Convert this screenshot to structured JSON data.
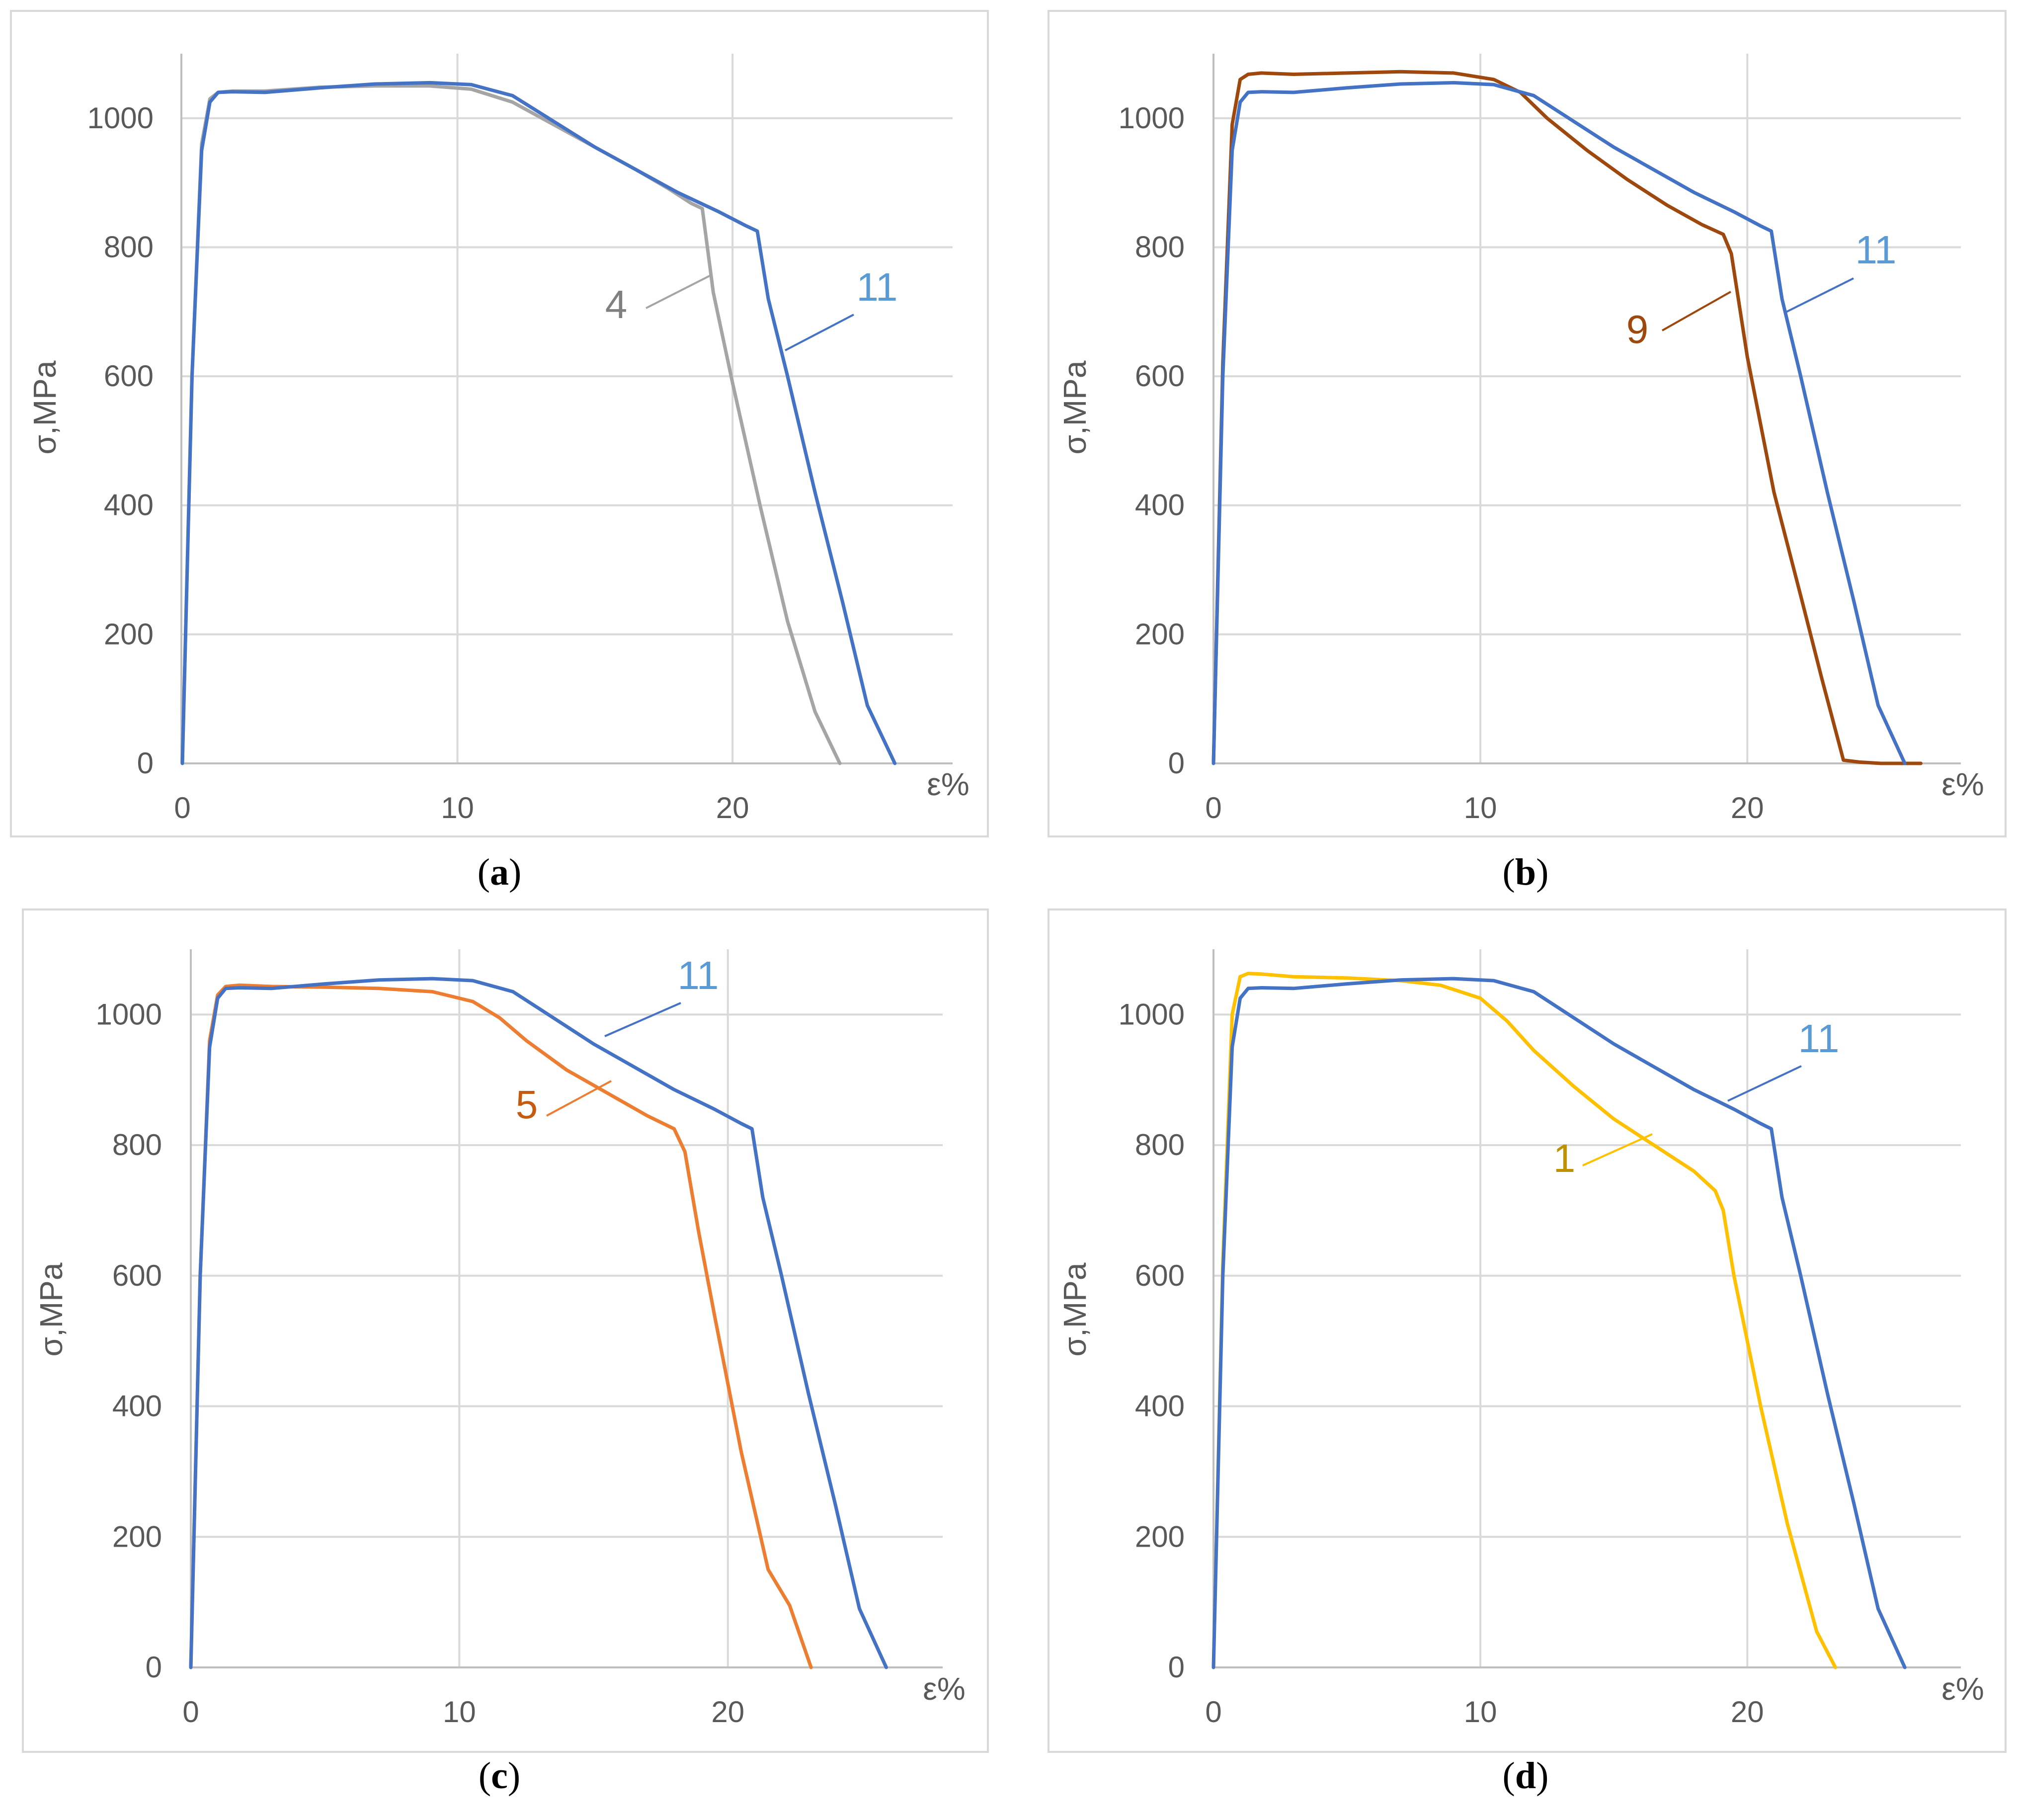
{
  "colors": {
    "frame": "#d9d9d9",
    "grid": "#d9d9d9",
    "axis": "#bfbfbf",
    "text": "#595959"
  },
  "chart_data": [
    {
      "id": "a",
      "type": "line",
      "caption": "a",
      "xlabel": "ε%",
      "ylabel": "σ,MPa",
      "xlim": [
        0,
        28
      ],
      "ylim": [
        0,
        1100
      ],
      "xticks": [
        "0",
        "10",
        "20"
      ],
      "yticks": [
        "0",
        "200",
        "400",
        "600",
        "800",
        "1000"
      ],
      "grid": true,
      "series": [
        {
          "name": "4",
          "color": "#a5a5a5",
          "x": [
            0,
            0.35,
            0.7,
            1.0,
            1.3,
            1.8,
            3,
            5,
            7,
            9,
            10.5,
            12,
            13.5,
            15,
            16.5,
            17.7,
            18.5,
            18.9,
            19.3,
            20,
            21,
            22,
            23,
            23.9
          ],
          "y": [
            0,
            600,
            960,
            1030,
            1040,
            1042,
            1042,
            1048,
            1050,
            1050,
            1045,
            1025,
            990,
            955,
            920,
            890,
            868,
            860,
            730,
            590,
            400,
            220,
            80,
            0
          ]
        },
        {
          "name": "11",
          "color": "#4472c4",
          "x": [
            0,
            0.35,
            0.7,
            1.0,
            1.3,
            1.8,
            3,
            5,
            7,
            9,
            10.5,
            12,
            13.5,
            15,
            16.5,
            18,
            19.5,
            20.5,
            20.9,
            21.3,
            22,
            23,
            24,
            24.9,
            25.9
          ],
          "y": [
            0,
            600,
            950,
            1025,
            1040,
            1041,
            1040,
            1047,
            1053,
            1055,
            1052,
            1035,
            995,
            955,
            920,
            885,
            855,
            833,
            825,
            720,
            600,
            420,
            250,
            90,
            0
          ]
        }
      ],
      "annotations": [
        {
          "text": "4",
          "series": "4",
          "color": "#808080"
        },
        {
          "text": "11",
          "series": "11",
          "color": "#5b9bd5"
        }
      ]
    },
    {
      "id": "b",
      "type": "line",
      "caption": "b",
      "xlabel": "ε%",
      "ylabel": "σ,MPa",
      "xlim": [
        0,
        28
      ],
      "ylim": [
        0,
        1100
      ],
      "xticks": [
        "0",
        "10",
        "20"
      ],
      "yticks": [
        "0",
        "200",
        "400",
        "600",
        "800",
        "1000"
      ],
      "grid": true,
      "series": [
        {
          "name": "9",
          "color": "#9e480e",
          "x": [
            0,
            0.35,
            0.7,
            1.0,
            1.3,
            1.8,
            3,
            5,
            7,
            9,
            10.5,
            11.5,
            12.5,
            14,
            15.5,
            17,
            18.3,
            19.1,
            19.4,
            20,
            21,
            22,
            22.8,
            23.6,
            24.2,
            25,
            26.5
          ],
          "y": [
            0,
            620,
            990,
            1060,
            1068,
            1070,
            1068,
            1070,
            1072,
            1070,
            1060,
            1040,
            1000,
            950,
            905,
            865,
            835,
            820,
            790,
            630,
            420,
            260,
            130,
            5,
            2,
            0,
            0
          ]
        },
        {
          "name": "11",
          "color": "#4472c4",
          "x": [
            0,
            0.35,
            0.7,
            1.0,
            1.3,
            1.8,
            3,
            5,
            7,
            9,
            10.5,
            12,
            13.5,
            15,
            16.5,
            18,
            19.5,
            20.5,
            20.9,
            21.3,
            22,
            23,
            24,
            24.9,
            25.9
          ],
          "y": [
            0,
            600,
            950,
            1025,
            1040,
            1041,
            1040,
            1047,
            1053,
            1055,
            1052,
            1035,
            995,
            955,
            920,
            885,
            855,
            833,
            825,
            720,
            600,
            420,
            250,
            90,
            0
          ]
        }
      ],
      "annotations": [
        {
          "text": "9",
          "series": "9",
          "color": "#9e480e"
        },
        {
          "text": "11",
          "series": "11",
          "color": "#5b9bd5"
        }
      ]
    },
    {
      "id": "c",
      "type": "line",
      "caption": "c",
      "xlabel": "ε%",
      "ylabel": "σ,MPa",
      "xlim": [
        0,
        28
      ],
      "ylim": [
        0,
        1100
      ],
      "xticks": [
        "0",
        "10",
        "20"
      ],
      "yticks": [
        "0",
        "200",
        "400",
        "600",
        "800",
        "1000"
      ],
      "grid": true,
      "series": [
        {
          "name": "5",
          "color": "#ed7d31",
          "x": [
            0,
            0.35,
            0.7,
            1.0,
            1.3,
            1.8,
            3,
            5,
            7,
            9,
            10.5,
            11.5,
            12.5,
            14,
            15.5,
            17,
            18,
            18.4,
            18.9,
            19.5,
            20.5,
            21.5,
            22.3,
            23.1
          ],
          "y": [
            0,
            600,
            960,
            1030,
            1043,
            1045,
            1043,
            1042,
            1040,
            1035,
            1020,
            995,
            960,
            915,
            880,
            845,
            825,
            790,
            670,
            540,
            330,
            150,
            95,
            0
          ]
        },
        {
          "name": "11",
          "color": "#4472c4",
          "x": [
            0,
            0.35,
            0.7,
            1.0,
            1.3,
            1.8,
            3,
            5,
            7,
            9,
            10.5,
            12,
            13.5,
            15,
            16.5,
            18,
            19.5,
            20.5,
            20.9,
            21.3,
            22,
            23,
            24,
            24.9,
            25.9
          ],
          "y": [
            0,
            600,
            950,
            1025,
            1040,
            1041,
            1040,
            1047,
            1053,
            1055,
            1052,
            1035,
            995,
            955,
            920,
            885,
            855,
            833,
            825,
            720,
            600,
            420,
            250,
            90,
            0
          ]
        }
      ],
      "annotations": [
        {
          "text": "5",
          "series": "5",
          "color": "#c55a11"
        },
        {
          "text": "11",
          "series": "11",
          "color": "#5b9bd5"
        }
      ]
    },
    {
      "id": "d",
      "type": "line",
      "caption": "d",
      "xlabel": "ε%",
      "ylabel": "σ,MPa",
      "xlim": [
        0,
        28
      ],
      "ylim": [
        0,
        1100
      ],
      "xticks": [
        "0",
        "10",
        "20"
      ],
      "yticks": [
        "0",
        "200",
        "400",
        "600",
        "800",
        "1000"
      ],
      "grid": true,
      "series": [
        {
          "name": "1",
          "color": "#ffc000",
          "x": [
            0,
            0.35,
            0.7,
            1.0,
            1.3,
            1.8,
            3,
            5,
            7,
            8.5,
            10,
            11,
            12,
            13.5,
            15,
            16.5,
            18,
            18.8,
            19.1,
            19.5,
            20.5,
            21.5,
            22.6,
            23.3
          ],
          "y": [
            0,
            620,
            1000,
            1058,
            1063,
            1062,
            1058,
            1056,
            1052,
            1045,
            1025,
            990,
            945,
            890,
            840,
            800,
            760,
            730,
            700,
            600,
            400,
            220,
            55,
            0
          ]
        },
        {
          "name": "11",
          "color": "#4472c4",
          "x": [
            0,
            0.35,
            0.7,
            1.0,
            1.3,
            1.8,
            3,
            5,
            7,
            9,
            10.5,
            12,
            13.5,
            15,
            16.5,
            18,
            19.5,
            20.5,
            20.9,
            21.3,
            22,
            23,
            24,
            24.9,
            25.9
          ],
          "y": [
            0,
            600,
            950,
            1025,
            1040,
            1041,
            1040,
            1047,
            1053,
            1055,
            1052,
            1035,
            995,
            955,
            920,
            885,
            855,
            833,
            825,
            720,
            600,
            420,
            250,
            90,
            0
          ]
        }
      ],
      "annotations": [
        {
          "text": "1",
          "series": "1",
          "color": "#bf9000"
        },
        {
          "text": "11",
          "series": "11",
          "color": "#5b9bd5"
        }
      ]
    }
  ]
}
